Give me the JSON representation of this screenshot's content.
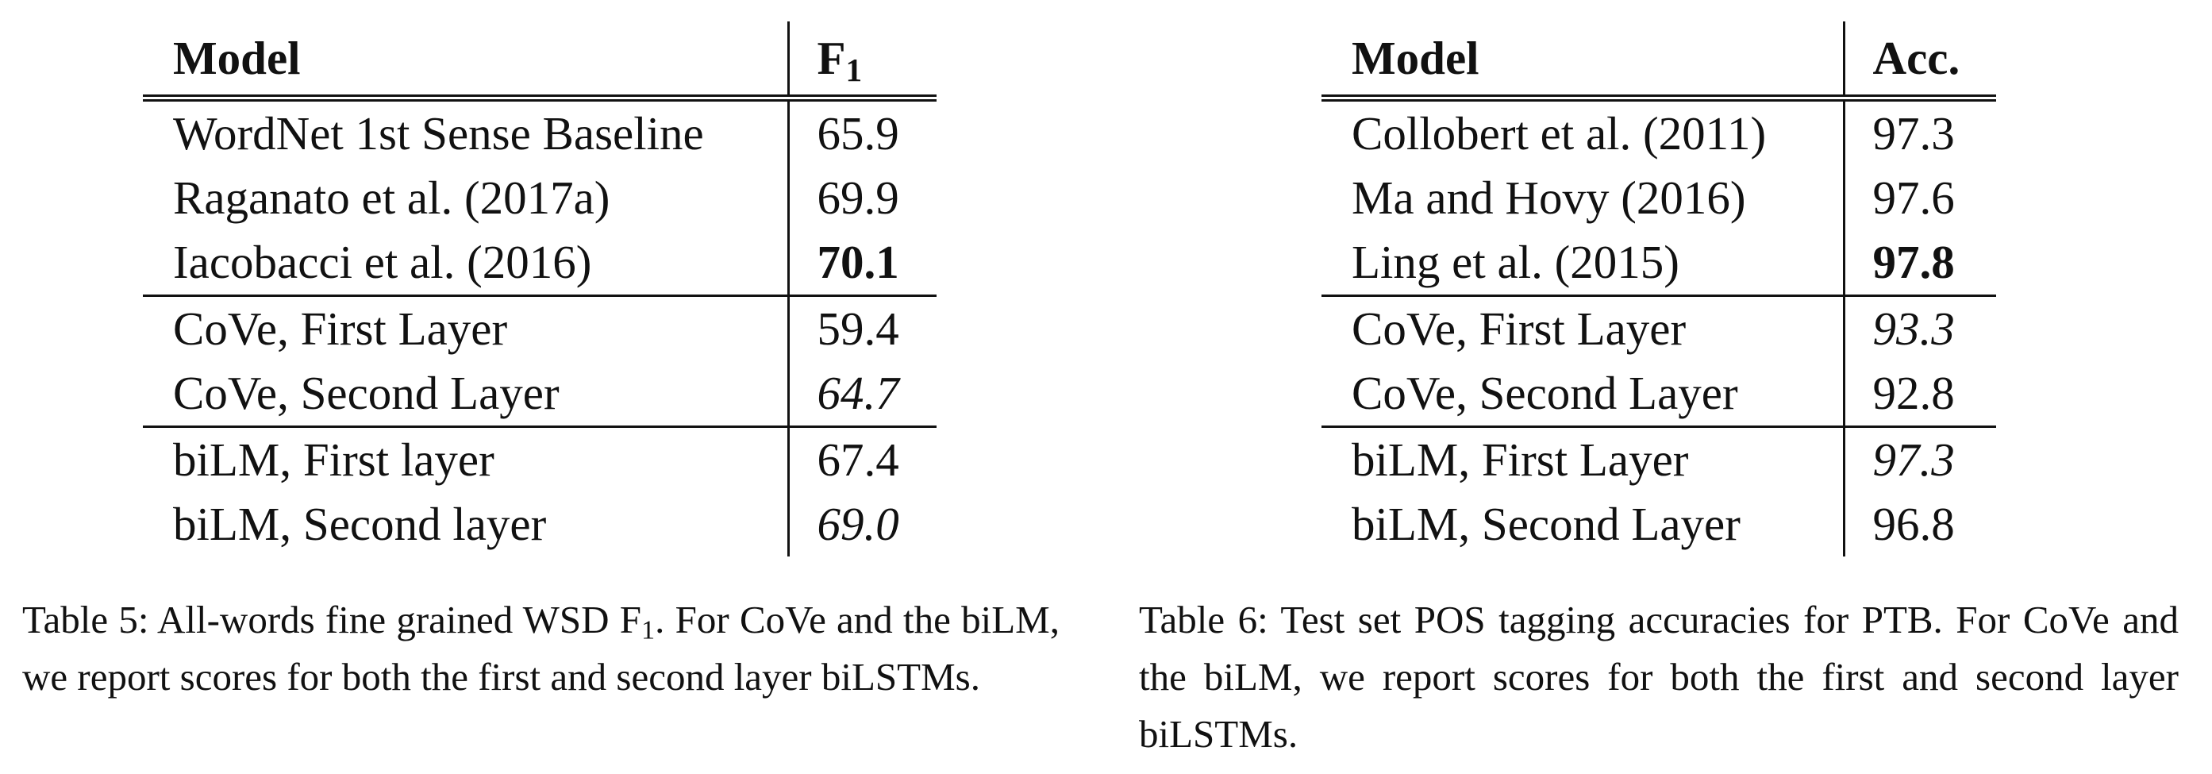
{
  "table5": {
    "header": {
      "model": "Model",
      "score": "F",
      "score_sub": "1"
    },
    "groups": [
      [
        {
          "model": "WordNet 1st Sense Baseline",
          "score": "65.9",
          "style": ""
        },
        {
          "model": "Raganato et al. (2017a)",
          "score": "69.9",
          "style": ""
        },
        {
          "model": "Iacobacci et al. (2016)",
          "score": "70.1",
          "style": "bold"
        }
      ],
      [
        {
          "model": "CoVe, First Layer",
          "score": "59.4",
          "style": ""
        },
        {
          "model": "CoVe, Second Layer",
          "score": "64.7",
          "style": "italic"
        }
      ],
      [
        {
          "model": "biLM, First layer",
          "score": "67.4",
          "style": ""
        },
        {
          "model": "biLM, Second layer",
          "score": "69.0",
          "style": "italic"
        }
      ]
    ],
    "caption": {
      "label": "Table 5:",
      "pre_sub": "All-words fine grained WSD F",
      "sub": "1",
      "post_sub": ".  For CoVe and the biLM, we report scores for both the first and second layer biLSTMs."
    }
  },
  "table6": {
    "header": {
      "model": "Model",
      "score": "Acc."
    },
    "groups": [
      [
        {
          "model": "Collobert et al. (2011)",
          "score": "97.3",
          "style": ""
        },
        {
          "model": "Ma and Hovy (2016)",
          "score": "97.6",
          "style": ""
        },
        {
          "model": "Ling et al. (2015)",
          "score": "97.8",
          "style": "bold"
        }
      ],
      [
        {
          "model": "CoVe, First Layer",
          "score": "93.3",
          "style": "italic"
        },
        {
          "model": "CoVe, Second Layer",
          "score": "92.8",
          "style": ""
        }
      ],
      [
        {
          "model": "biLM, First Layer",
          "score": "97.3",
          "style": "italic"
        },
        {
          "model": "biLM, Second Layer",
          "score": "96.8",
          "style": ""
        }
      ]
    ],
    "caption": {
      "label": "Table 6:",
      "text": "Test set POS tagging accuracies for PTB. For CoVe and the biLM, we report scores for both the first and second layer biLSTMs."
    }
  }
}
